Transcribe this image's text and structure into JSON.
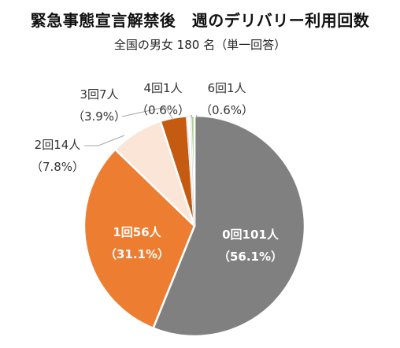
{
  "title": "緊急事態宣言解禁後　週のデリバリー利用回数",
  "subtitle": "全国の男女 180 名（単一回答）",
  "chart_data": {
    "type": "pie",
    "categories": [
      "0回",
      "1回",
      "2回",
      "3回",
      "4回",
      "6回"
    ],
    "values": [
      101,
      56,
      14,
      7,
      1,
      1
    ],
    "percentages": [
      56.1,
      31.1,
      7.8,
      3.9,
      0.6,
      0.6
    ],
    "labels": [
      {
        "line1": "0回101人",
        "line2": "（56.1%）"
      },
      {
        "line1": "1回56人",
        "line2": "（31.1%）"
      },
      {
        "line1": "2回14人",
        "line2": "（7.8%）"
      },
      {
        "line1": "3回7人",
        "line2": "（3.9%）"
      },
      {
        "line1": "4回1人",
        "line2": "（0.6%）"
      },
      {
        "line1": "6回1人",
        "line2": "（0.6%）"
      }
    ],
    "colors": [
      "#808080",
      "#ED7D31",
      "#FBE5D6",
      "#C55A11",
      "#FFFFFF",
      "#A9D18E"
    ],
    "total": 180,
    "start": "12 o'clock",
    "direction": "clockwise",
    "legend": "none"
  }
}
